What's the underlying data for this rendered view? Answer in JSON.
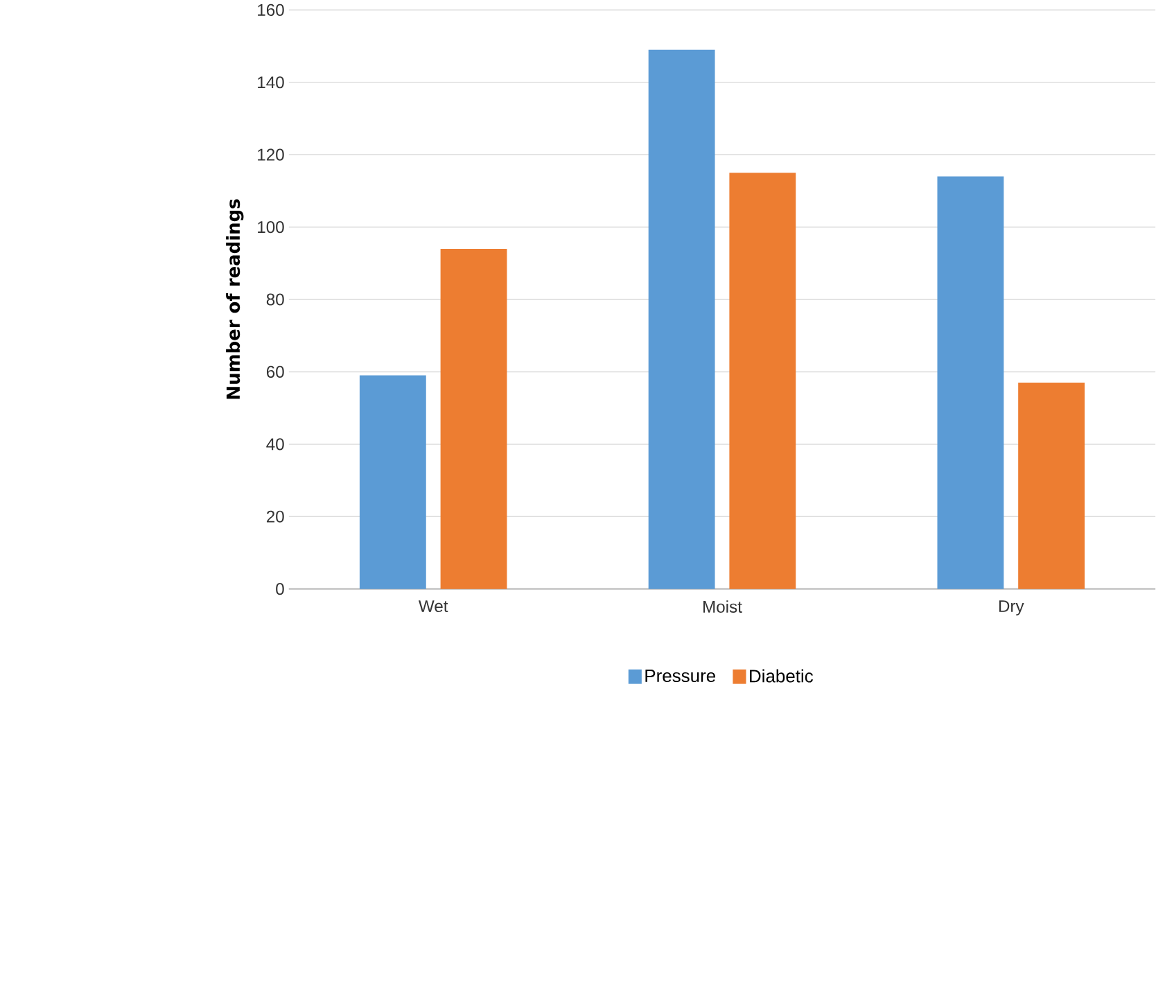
{
  "chart_data": {
    "type": "bar",
    "ylabel": "Number of readings",
    "categories": [
      "Wet",
      "Moist",
      "Dry"
    ],
    "series": [
      {
        "name": "Pressure",
        "color": "#5b9bd5",
        "values": [
          59,
          149,
          114
        ]
      },
      {
        "name": "Diabetic",
        "color": "#ed7d31",
        "values": [
          94,
          115,
          57
        ]
      }
    ],
    "ylim": [
      0,
      160
    ],
    "yticks": [
      0,
      20,
      40,
      60,
      80,
      100,
      120,
      140,
      160
    ],
    "grid": "y",
    "legend": "bottom"
  }
}
